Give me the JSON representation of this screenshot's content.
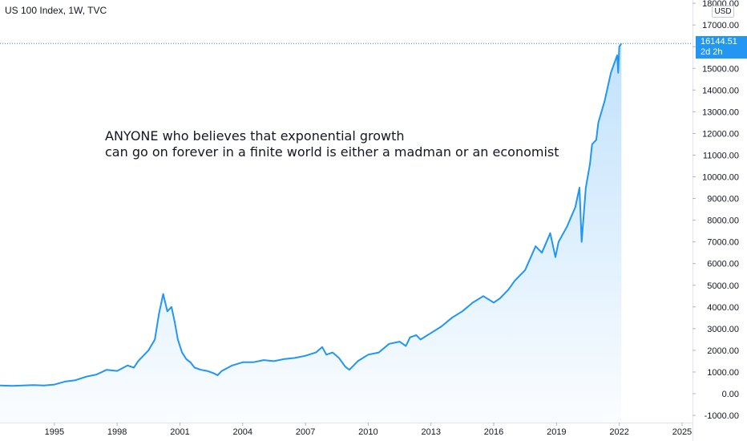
{
  "header": {
    "title": "US 100 Index, 1W, TVC"
  },
  "annotation": {
    "line1": "ANYONE who believes that exponential growth",
    "line2": "can go on forever in a finite world is either a madman or an economist"
  },
  "price_scale": {
    "currency": "USD"
  },
  "last_price": {
    "value": "16144.51",
    "countdown": "2d 2h"
  },
  "colors": {
    "line": "#2196f3",
    "fill": "#2196f3",
    "axis_text": "#131722",
    "axis_line": "#e0e3eb"
  },
  "chart_data": {
    "type": "area",
    "title": "US 100 Index, 1W, TVC",
    "xlim": [
      1992.4,
      2025.5
    ],
    "ylim": [
      -1000,
      18000
    ],
    "x_ticks": [
      "1995",
      "1998",
      "2001",
      "2004",
      "2007",
      "2010",
      "2013",
      "2016",
      "2019",
      "2022",
      "2025"
    ],
    "y_ticks": [
      "18000.00",
      "17000.00",
      "16000.00",
      "15000.00",
      "14000.00",
      "13000.00",
      "12000.00",
      "11000.00",
      "10000.00",
      "9000.00",
      "8000.00",
      "7000.00",
      "6000.00",
      "5000.00",
      "4000.00",
      "3000.00",
      "2000.00",
      "1000.00",
      "0.00",
      "-1000.00"
    ],
    "series": [
      {
        "x": [
          1992.4,
          1993.0,
          1994.0,
          1994.5,
          1995.0,
          1995.5,
          1996.0,
          1996.5,
          1997.0,
          1997.5,
          1998.0,
          1998.5,
          1998.8,
          1999.0,
          1999.5,
          1999.8,
          2000.0,
          2000.2,
          2000.4,
          2000.6,
          2000.75,
          2000.9,
          2001.1,
          2001.3,
          2001.5,
          2001.7,
          2002.0,
          2002.3,
          2002.6,
          2002.8,
          2003.0,
          2003.5,
          2004.0,
          2004.5,
          2005.0,
          2005.5,
          2006.0,
          2006.5,
          2007.0,
          2007.5,
          2007.8,
          2008.0,
          2008.3,
          2008.6,
          2008.9,
          2009.1,
          2009.5,
          2010.0,
          2010.5,
          2011.0,
          2011.5,
          2011.8,
          2012.0,
          2012.3,
          2012.5,
          2013.0,
          2013.5,
          2014.0,
          2014.5,
          2015.0,
          2015.5,
          2016.0,
          2016.3,
          2016.7,
          2017.0,
          2017.5,
          2018.0,
          2018.3,
          2018.7,
          2018.95,
          2019.1,
          2019.5,
          2019.9,
          2020.1,
          2020.2,
          2020.4,
          2020.6,
          2020.7,
          2020.9,
          2021.0,
          2021.3,
          2021.6,
          2021.9,
          2021.95,
          2022.0,
          2022.1
        ],
        "y": [
          380,
          360,
          400,
          380,
          420,
          560,
          620,
          780,
          880,
          1100,
          1050,
          1300,
          1200,
          1500,
          2000,
          2500,
          3700,
          4600,
          3800,
          4000,
          3300,
          2500,
          1900,
          1600,
          1450,
          1200,
          1100,
          1050,
          950,
          850,
          1050,
          1300,
          1450,
          1450,
          1550,
          1500,
          1600,
          1650,
          1750,
          1900,
          2150,
          1800,
          1900,
          1650,
          1250,
          1100,
          1500,
          1800,
          1900,
          2300,
          2400,
          2200,
          2600,
          2700,
          2500,
          2800,
          3100,
          3500,
          3800,
          4200,
          4500,
          4200,
          4400,
          4800,
          5200,
          5700,
          6800,
          6500,
          7400,
          6300,
          7000,
          7700,
          8600,
          9500,
          7000,
          9500,
          10600,
          11500,
          11700,
          12500,
          13500,
          14800,
          15600,
          14800,
          16000,
          16144
        ]
      }
    ]
  }
}
